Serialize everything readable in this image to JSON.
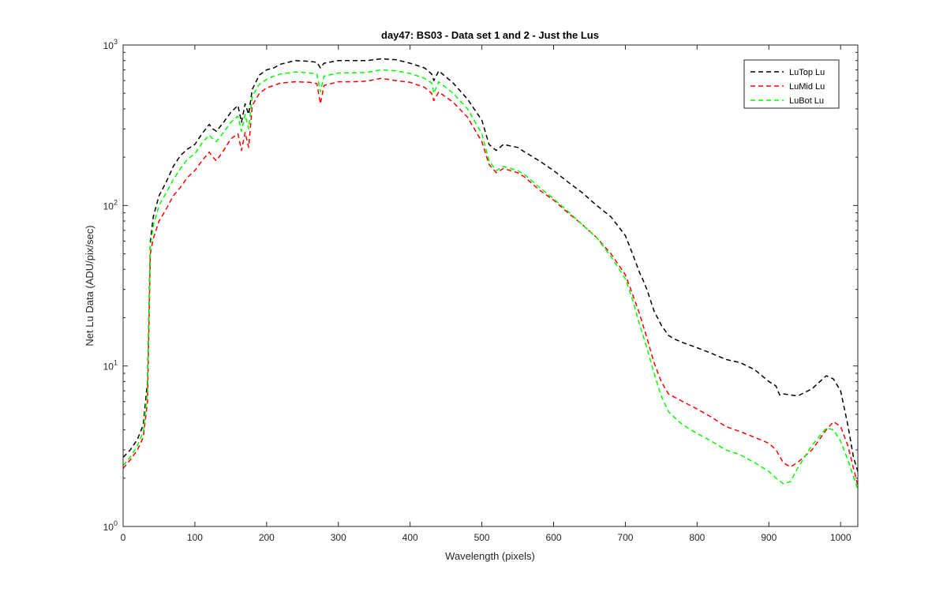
{
  "chart_data": {
    "type": "line",
    "title": "day47: BS03 - Data set 1 and 2 - Just the Lus",
    "xlabel": "Wavelength (pixels)",
    "ylabel": "Net Lu Data (ADU/pix/sec)",
    "xlim": [
      0,
      1024
    ],
    "ylim": [
      1,
      1000
    ],
    "yscale": "log",
    "grid": false,
    "legend_location": "top-right",
    "x_ticks": [
      0,
      100,
      200,
      300,
      400,
      500,
      600,
      700,
      800,
      900,
      1000
    ],
    "x_tick_labels": [
      "0",
      "100",
      "200",
      "300",
      "400",
      "500",
      "600",
      "700",
      "800",
      "900",
      "1000"
    ],
    "y_ticks": [
      1,
      10,
      100,
      1000
    ],
    "y_tick_labels": [
      {
        "base": "10",
        "exp": "0"
      },
      {
        "base": "10",
        "exp": "1"
      },
      {
        "base": "10",
        "exp": "2"
      },
      {
        "base": "10",
        "exp": "3"
      }
    ],
    "series": [
      {
        "name": "LuTop  Lu",
        "color": "#000000",
        "x": [
          0,
          10,
          20,
          28,
          34,
          38,
          42,
          50,
          60,
          70,
          80,
          90,
          100,
          110,
          120,
          125,
          130,
          140,
          150,
          160,
          165,
          170,
          175,
          180,
          190,
          200,
          210,
          220,
          240,
          260,
          270,
          275,
          280,
          300,
          320,
          340,
          360,
          380,
          400,
          420,
          430,
          433,
          440,
          460,
          480,
          500,
          510,
          520,
          530,
          550,
          560,
          580,
          600,
          620,
          640,
          660,
          680,
          700,
          710,
          720,
          725,
          730,
          740,
          750,
          760,
          770,
          780,
          800,
          820,
          840,
          860,
          880,
          900,
          910,
          915,
          920,
          940,
          960,
          980,
          990,
          1000,
          1010,
          1018,
          1024
        ],
        "y": [
          2.7,
          3.0,
          3.5,
          4.3,
          8,
          60,
          85,
          115,
          140,
          175,
          205,
          225,
          240,
          280,
          320,
          300,
          290,
          330,
          380,
          420,
          330,
          430,
          370,
          530,
          650,
          700,
          720,
          760,
          800,
          790,
          780,
          720,
          770,
          800,
          800,
          800,
          820,
          810,
          770,
          720,
          660,
          600,
          690,
          580,
          460,
          340,
          240,
          220,
          240,
          230,
          215,
          190,
          165,
          140,
          120,
          100,
          85,
          65,
          50,
          38,
          34,
          30,
          22,
          18,
          15.5,
          14.6,
          14,
          13,
          12,
          11,
          10.5,
          9.5,
          8,
          7.5,
          6.6,
          6.7,
          6.5,
          7.2,
          8.7,
          8.3,
          7,
          4.3,
          2.7,
          2.2
        ]
      },
      {
        "name": "LuMid  Lu",
        "color": "#ff0000",
        "x": [
          0,
          10,
          20,
          28,
          34,
          38,
          42,
          50,
          60,
          70,
          80,
          90,
          100,
          110,
          120,
          125,
          130,
          140,
          150,
          160,
          165,
          170,
          175,
          180,
          190,
          200,
          210,
          220,
          240,
          260,
          270,
          275,
          280,
          300,
          320,
          340,
          360,
          380,
          400,
          420,
          430,
          433,
          440,
          460,
          480,
          500,
          510,
          520,
          530,
          550,
          560,
          580,
          600,
          620,
          640,
          660,
          680,
          700,
          710,
          720,
          730,
          740,
          750,
          760,
          780,
          800,
          820,
          840,
          860,
          880,
          900,
          910,
          920,
          930,
          940,
          960,
          980,
          990,
          1000,
          1010,
          1024
        ],
        "y": [
          2.3,
          2.6,
          3.0,
          3.6,
          6,
          50,
          62,
          80,
          95,
          115,
          130,
          150,
          165,
          190,
          215,
          200,
          190,
          220,
          260,
          280,
          220,
          285,
          230,
          420,
          500,
          540,
          560,
          580,
          590,
          585,
          575,
          430,
          560,
          590,
          590,
          595,
          620,
          600,
          585,
          545,
          500,
          450,
          510,
          440,
          355,
          250,
          180,
          160,
          170,
          160,
          150,
          125,
          108,
          90,
          76,
          63,
          50,
          37,
          28,
          21,
          15,
          10.5,
          8,
          6.7,
          6.0,
          5.4,
          4.8,
          4.2,
          3.9,
          3.6,
          3.3,
          3.0,
          2.5,
          2.35,
          2.5,
          3.0,
          4.0,
          4.5,
          4.2,
          3.2,
          1.8
        ]
      },
      {
        "name": "LuBot  Lu",
        "color": "#00ff00",
        "x": [
          0,
          10,
          20,
          28,
          34,
          38,
          42,
          50,
          60,
          70,
          80,
          90,
          100,
          110,
          120,
          125,
          130,
          140,
          150,
          160,
          165,
          170,
          175,
          180,
          190,
          200,
          210,
          220,
          240,
          260,
          270,
          275,
          280,
          300,
          320,
          340,
          360,
          380,
          400,
          420,
          430,
          433,
          440,
          460,
          480,
          500,
          510,
          520,
          530,
          550,
          560,
          580,
          600,
          620,
          640,
          660,
          680,
          700,
          710,
          720,
          730,
          740,
          750,
          760,
          770,
          780,
          800,
          820,
          840,
          860,
          880,
          900,
          910,
          920,
          930,
          940,
          960,
          980,
          990,
          1000,
          1010,
          1024
        ],
        "y": [
          2.4,
          2.7,
          3.2,
          3.9,
          7,
          55,
          75,
          100,
          120,
          145,
          170,
          195,
          210,
          245,
          275,
          260,
          250,
          285,
          330,
          360,
          290,
          370,
          300,
          480,
          570,
          610,
          640,
          660,
          680,
          670,
          660,
          510,
          640,
          670,
          670,
          675,
          700,
          690,
          665,
          620,
          580,
          500,
          590,
          500,
          400,
          280,
          190,
          165,
          175,
          165,
          155,
          130,
          110,
          92,
          76,
          63,
          48,
          35,
          26,
          18,
          13,
          9,
          6.5,
          5.2,
          4.7,
          4.3,
          3.8,
          3.4,
          3.0,
          2.8,
          2.5,
          2.2,
          2.0,
          1.85,
          1.9,
          2.3,
          3.2,
          4.1,
          4.0,
          3.4,
          2.6,
          1.7
        ]
      }
    ]
  }
}
